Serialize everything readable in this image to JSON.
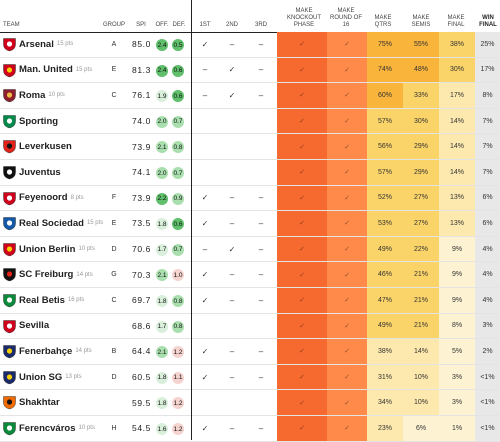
{
  "headers": {
    "team": "TEAM",
    "group": "GROUP",
    "spi": "SPI",
    "off": "OFF.",
    "def": "DEF.",
    "first": "1ST",
    "second": "2ND",
    "third": "3RD",
    "ko": "MAKE KNOCKOUT PHASE",
    "r16": "MAKE ROUND OF 16",
    "qtrs": "MAKE QTRS",
    "semis": "MAKE SEMIS",
    "final": "MAKE FINAL",
    "win": "WIN FINAL"
  },
  "colors": {
    "off_green": "#5fbf6a",
    "off_light_green": "#a9dfae",
    "off_pale": "#d9efdb",
    "def_green": "#5fbf6a",
    "def_light_green": "#a9dfae",
    "def_pale_red": "#f5d3cf",
    "orange": "#f76a2f",
    "orange_light": "#ff8a4a",
    "amber": "#f9b43c",
    "yellow": "#fbd469",
    "pale_yellow": "#fde9ad",
    "cream": "#fdf3d3",
    "win_bg": "#e8e8e8"
  },
  "rows": [
    {
      "team": "Arsenal",
      "pts": "15 pts",
      "icon": "arsenal-crest-icon",
      "group": "A",
      "spi": "85.0",
      "off": "2.4",
      "def": "0.5",
      "first": "✓",
      "second": "–",
      "third": "–",
      "ko": "✓",
      "r16": "✓",
      "qtrs": "75%",
      "semis": "55%",
      "final": "38%",
      "win": "25%"
    },
    {
      "team": "Man. United",
      "pts": "15 pts",
      "icon": "man-united-crest-icon",
      "group": "E",
      "spi": "81.3",
      "off": "2.4",
      "def": "0.6",
      "first": "–",
      "second": "✓",
      "third": "–",
      "ko": "✓",
      "r16": "✓",
      "qtrs": "74%",
      "semis": "48%",
      "final": "30%",
      "win": "17%"
    },
    {
      "team": "Roma",
      "pts": "10 pts",
      "icon": "roma-crest-icon",
      "group": "C",
      "spi": "76.1",
      "off": "1.9",
      "def": "0.6",
      "first": "–",
      "second": "✓",
      "third": "–",
      "ko": "✓",
      "r16": "✓",
      "qtrs": "60%",
      "semis": "33%",
      "final": "17%",
      "win": "8%"
    },
    {
      "team": "Sporting",
      "pts": "",
      "icon": "sporting-crest-icon",
      "group": "",
      "spi": "74.0",
      "off": "2.0",
      "def": "0.7",
      "first": "",
      "second": "",
      "third": "",
      "ko": "✓",
      "r16": "✓",
      "qtrs": "57%",
      "semis": "30%",
      "final": "14%",
      "win": "7%"
    },
    {
      "team": "Leverkusen",
      "pts": "",
      "icon": "leverkusen-crest-icon",
      "group": "",
      "spi": "73.9",
      "off": "2.1",
      "def": "0.8",
      "first": "",
      "second": "",
      "third": "",
      "ko": "✓",
      "r16": "✓",
      "qtrs": "56%",
      "semis": "29%",
      "final": "14%",
      "win": "7%"
    },
    {
      "team": "Juventus",
      "pts": "",
      "icon": "juventus-crest-icon",
      "group": "",
      "spi": "74.1",
      "off": "2.0",
      "def": "0.7",
      "first": "",
      "second": "",
      "third": "",
      "ko": "✓",
      "r16": "✓",
      "qtrs": "57%",
      "semis": "29%",
      "final": "14%",
      "win": "7%"
    },
    {
      "team": "Feyenoord",
      "pts": "8 pts",
      "icon": "feyenoord-crest-icon",
      "group": "F",
      "spi": "73.9",
      "off": "2.2",
      "def": "0.9",
      "first": "✓",
      "second": "–",
      "third": "–",
      "ko": "✓",
      "r16": "✓",
      "qtrs": "52%",
      "semis": "27%",
      "final": "13%",
      "win": "6%"
    },
    {
      "team": "Real Sociedad",
      "pts": "15 pts",
      "icon": "real-sociedad-crest-icon",
      "group": "E",
      "spi": "73.5",
      "off": "1.8",
      "def": "0.6",
      "first": "✓",
      "second": "–",
      "third": "–",
      "ko": "✓",
      "r16": "✓",
      "qtrs": "53%",
      "semis": "27%",
      "final": "13%",
      "win": "6%"
    },
    {
      "team": "Union Berlin",
      "pts": "10 pts",
      "icon": "union-berlin-crest-icon",
      "group": "D",
      "spi": "70.6",
      "off": "1.7",
      "def": "0.7",
      "first": "–",
      "second": "✓",
      "third": "–",
      "ko": "✓",
      "r16": "✓",
      "qtrs": "49%",
      "semis": "22%",
      "final": "9%",
      "win": "4%"
    },
    {
      "team": "SC Freiburg",
      "pts": "14 pts",
      "icon": "sc-freiburg-crest-icon",
      "group": "G",
      "spi": "70.3",
      "off": "2.1",
      "def": "1.0",
      "first": "✓",
      "second": "–",
      "third": "–",
      "ko": "✓",
      "r16": "✓",
      "qtrs": "46%",
      "semis": "21%",
      "final": "9%",
      "win": "4%"
    },
    {
      "team": "Real Betis",
      "pts": "16 pts",
      "icon": "real-betis-crest-icon",
      "group": "C",
      "spi": "69.7",
      "off": "1.8",
      "def": "0.8",
      "first": "✓",
      "second": "–",
      "third": "–",
      "ko": "✓",
      "r16": "✓",
      "qtrs": "47%",
      "semis": "21%",
      "final": "9%",
      "win": "4%"
    },
    {
      "team": "Sevilla",
      "pts": "",
      "icon": "sevilla-crest-icon",
      "group": "",
      "spi": "68.6",
      "off": "1.7",
      "def": "0.8",
      "first": "",
      "second": "",
      "third": "",
      "ko": "✓",
      "r16": "✓",
      "qtrs": "49%",
      "semis": "21%",
      "final": "8%",
      "win": "3%"
    },
    {
      "team": "Fenerbahçe",
      "pts": "14 pts",
      "icon": "fenerbahce-crest-icon",
      "group": "B",
      "spi": "64.4",
      "off": "2.1",
      "def": "1.2",
      "first": "✓",
      "second": "–",
      "third": "–",
      "ko": "✓",
      "r16": "✓",
      "qtrs": "38%",
      "semis": "14%",
      "final": "5%",
      "win": "2%"
    },
    {
      "team": "Union SG",
      "pts": "13 pts",
      "icon": "union-sg-crest-icon",
      "group": "D",
      "spi": "60.5",
      "off": "1.8",
      "def": "1.1",
      "first": "✓",
      "second": "–",
      "third": "–",
      "ko": "✓",
      "r16": "✓",
      "qtrs": "31%",
      "semis": "10%",
      "final": "3%",
      "win": "<1%"
    },
    {
      "team": "Shakhtar",
      "pts": "",
      "icon": "shakhtar-crest-icon",
      "group": "",
      "spi": "59.5",
      "off": "1.8",
      "def": "1.2",
      "first": "",
      "second": "",
      "third": "",
      "ko": "✓",
      "r16": "✓",
      "qtrs": "34%",
      "semis": "10%",
      "final": "3%",
      "win": "<1%"
    },
    {
      "team": "Ferencváros",
      "pts": "10 pts",
      "icon": "ferencvaros-crest-icon",
      "group": "H",
      "spi": "54.5",
      "off": "1.6",
      "def": "1.2",
      "first": "✓",
      "second": "–",
      "third": "–",
      "ko": "✓",
      "r16": "✓",
      "qtrs": "23%",
      "semis": "6%",
      "final": "1%",
      "win": "<1%"
    }
  ]
}
